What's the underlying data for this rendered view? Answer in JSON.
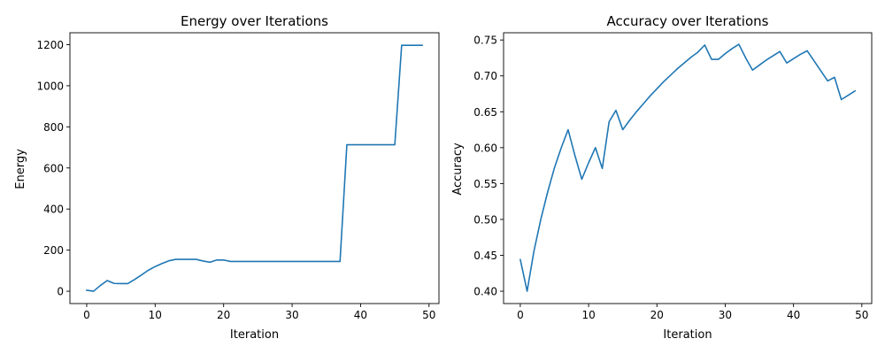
{
  "figure": {
    "background": "#ffffff",
    "line_color": "#1f77b4"
  },
  "chart_data": [
    {
      "type": "line",
      "title": "Energy over Iterations",
      "xlabel": "Iteration",
      "ylabel": "Energy",
      "xlim": [
        -2.45,
        51.45
      ],
      "ylim": [
        -60,
        1258
      ],
      "xticks": [
        0,
        10,
        20,
        30,
        40,
        50
      ],
      "xtick_labels": [
        "0",
        "10",
        "20",
        "30",
        "40",
        "50"
      ],
      "yticks": [
        0,
        200,
        400,
        600,
        800,
        1000,
        1200
      ],
      "ytick_labels": [
        "0",
        "200",
        "400",
        "600",
        "800",
        "1000",
        "1200"
      ],
      "grid": false,
      "series": [
        {
          "color": "#1f77b4",
          "x": [
            0,
            1,
            2,
            3,
            4,
            5,
            6,
            7,
            8,
            9,
            10,
            11,
            12,
            13,
            14,
            15,
            16,
            17,
            18,
            19,
            20,
            21,
            22,
            23,
            24,
            25,
            26,
            27,
            28,
            29,
            30,
            31,
            32,
            33,
            34,
            35,
            36,
            37,
            38,
            39,
            40,
            41,
            42,
            43,
            44,
            45,
            46,
            47,
            48,
            49
          ],
          "y": [
            5,
            0,
            28,
            52,
            38,
            37,
            37,
            57,
            79,
            102,
            120,
            135,
            148,
            155,
            155,
            155,
            155,
            147,
            141,
            152,
            152,
            145,
            145,
            145,
            145,
            145,
            145,
            145,
            145,
            145,
            145,
            145,
            145,
            145,
            145,
            145,
            145,
            145,
            713,
            713,
            713,
            713,
            713,
            713,
            713,
            713,
            1197,
            1197,
            1197,
            1197
          ]
        }
      ]
    },
    {
      "type": "line",
      "title": "Accuracy over Iterations",
      "xlabel": "Iteration",
      "ylabel": "Accuracy",
      "xlim": [
        -2.45,
        51.45
      ],
      "ylim": [
        0.3828,
        0.7601
      ],
      "xticks": [
        0,
        10,
        20,
        30,
        40,
        50
      ],
      "xtick_labels": [
        "0",
        "10",
        "20",
        "30",
        "40",
        "50"
      ],
      "yticks": [
        0.4,
        0.45,
        0.5,
        0.55,
        0.6,
        0.65,
        0.7,
        0.75
      ],
      "ytick_labels": [
        "0.40",
        "0.45",
        "0.50",
        "0.55",
        "0.60",
        "0.65",
        "0.70",
        "0.75"
      ],
      "grid": false,
      "series": [
        {
          "color": "#1f77b4",
          "x": [
            0,
            1,
            2,
            3,
            4,
            5,
            6,
            7,
            8,
            9,
            10,
            11,
            12,
            13,
            14,
            15,
            16,
            17,
            18,
            19,
            20,
            21,
            22,
            23,
            24,
            25,
            26,
            27,
            28,
            29,
            30,
            31,
            32,
            33,
            34,
            35,
            36,
            37,
            38,
            39,
            40,
            41,
            42,
            43,
            44,
            45,
            46,
            47,
            48,
            49
          ],
          "y": [
            0.444,
            0.4,
            0.456,
            0.5,
            0.538,
            0.572,
            0.6,
            0.625,
            0.589,
            0.556,
            0.579,
            0.6,
            0.571,
            0.636,
            0.652,
            0.625,
            0.638,
            0.65,
            0.661,
            0.672,
            0.682,
            0.692,
            0.701,
            0.71,
            0.718,
            0.726,
            0.733,
            0.743,
            0.723,
            0.723,
            0.731,
            0.738,
            0.744,
            0.725,
            0.708,
            0.715,
            0.722,
            0.728,
            0.734,
            0.718,
            0.724,
            0.73,
            0.735,
            0.721,
            0.707,
            0.693,
            0.698,
            0.667,
            0.673,
            0.679
          ]
        }
      ]
    }
  ]
}
